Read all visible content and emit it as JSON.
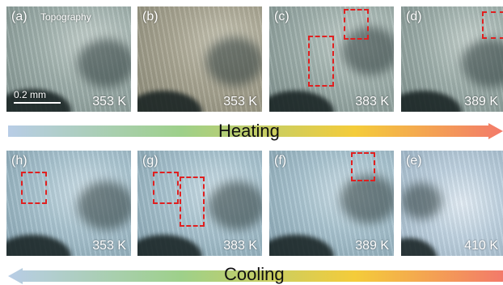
{
  "panels": [
    {
      "label": "(a)",
      "temperature": "353 K",
      "annotation": "Topography",
      "scale_bar": "0.2 mm"
    },
    {
      "label": "(b)",
      "temperature": "353 K"
    },
    {
      "label": "(c)",
      "temperature": "383 K"
    },
    {
      "label": "(d)",
      "temperature": "389 K"
    },
    {
      "label": "(h)",
      "temperature": "353 K"
    },
    {
      "label": "(g)",
      "temperature": "383 K"
    },
    {
      "label": "(f)",
      "temperature": "389 K"
    },
    {
      "label": "(e)",
      "temperature": "410 K"
    }
  ],
  "arrows": {
    "heating_label": "Heating",
    "cooling_label": "Cooling",
    "gradient_colors": [
      "#b8cde6",
      "#9ed08a",
      "#f4cc3a",
      "#f37a6a"
    ]
  },
  "roi_color": "#e02020"
}
